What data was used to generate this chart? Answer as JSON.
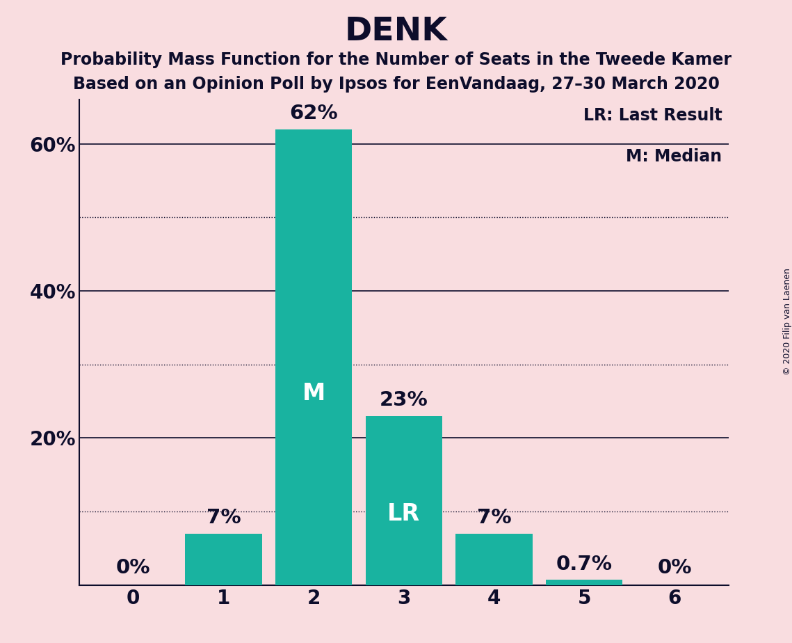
{
  "title": "DENK",
  "subtitle1": "Probability Mass Function for the Number of Seats in the Tweede Kamer",
  "subtitle2": "Based on an Opinion Poll by Ipsos for EenVandaag, 27–30 March 2020",
  "copyright_text": "© 2020 Filip van Laenen",
  "categories": [
    0,
    1,
    2,
    3,
    4,
    5,
    6
  ],
  "values": [
    0.0,
    7.0,
    62.0,
    23.0,
    7.0,
    0.7,
    0.0
  ],
  "bar_color": "#19b3a0",
  "background_color": "#f9dde0",
  "bar_labels": [
    "0%",
    "7%",
    "62%",
    "23%",
    "7%",
    "0.7%",
    "0%"
  ],
  "median_bar": 2,
  "lr_bar": 3,
  "median_label": "M",
  "lr_label": "LR",
  "label_color_inside": "#ffffff",
  "text_color": "#0d0d2b",
  "legend_lr": "LR: Last Result",
  "legend_m": "M: Median",
  "solid_lines": [
    20,
    40,
    60
  ],
  "dotted_lines": [
    10,
    30,
    50
  ],
  "ytick_labels": [
    "20%",
    "40%",
    "60%"
  ],
  "ytick_values": [
    20,
    40,
    60
  ],
  "ylim": [
    0,
    66
  ],
  "title_fontsize": 34,
  "subtitle_fontsize": 17,
  "tick_fontsize": 20,
  "bar_label_fontsize": 21,
  "inside_label_fontsize": 24,
  "legend_fontsize": 17,
  "copyright_fontsize": 9
}
